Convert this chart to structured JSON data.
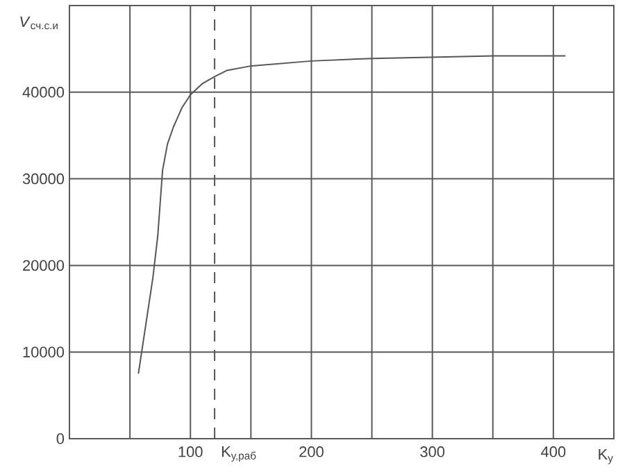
{
  "chart_data": {
    "type": "line",
    "xlabel": "K$_{у}$",
    "ylabel": "*V*$_{сч.с.и}$",
    "xlim": [
      0,
      450
    ],
    "ylim": [
      0,
      50000
    ],
    "xticks": [
      {
        "value": 50,
        "label": null
      },
      100,
      {
        "value": 150,
        "label": null
      },
      200,
      {
        "value": 250,
        "label": null
      },
      300,
      {
        "value": 350,
        "label": null
      },
      400,
      {
        "value": 450,
        "label": null
      }
    ],
    "yticks": [
      0,
      10000,
      20000,
      30000,
      40000
    ],
    "grid": true,
    "marker": "none",
    "line_style": "solid",
    "ref_lines": [
      {
        "axis": "x",
        "value": 120,
        "label": "K$_{у,раб}$",
        "line_style": "dashed",
        "color": "#555555"
      }
    ],
    "series": [
      {
        "color": "#555555",
        "x": [
          57,
          69,
          73,
          77,
          81,
          86,
          93,
          100,
          110,
          120,
          130,
          149,
          200,
          251,
          351,
          410
        ],
        "values": [
          7500,
          18600,
          23400,
          31000,
          34000,
          36000,
          38200,
          39700,
          41000,
          41800,
          42500,
          43000,
          43600,
          43900,
          44200,
          44200
        ]
      }
    ]
  }
}
